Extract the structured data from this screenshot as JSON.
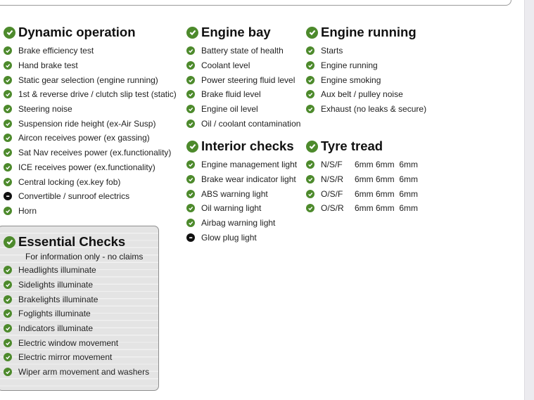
{
  "dynamic": {
    "title": "Dynamic operation",
    "items": [
      {
        "label": "Brake efficiency test",
        "status": "pass"
      },
      {
        "label": "Hand brake test",
        "status": "pass"
      },
      {
        "label": "Static gear selection (engine running)",
        "status": "pass"
      },
      {
        "label": "1st & reverse drive / clutch slip test (static)",
        "status": "pass"
      },
      {
        "label": "Steering noise",
        "status": "pass"
      },
      {
        "label": "Suspension ride height (ex-Air Susp)",
        "status": "pass"
      },
      {
        "label": "Aircon receives power (ex gassing)",
        "status": "pass"
      },
      {
        "label": "Sat Nav receives power (ex.functionality)",
        "status": "pass"
      },
      {
        "label": "ICE receives power (ex.functionality)",
        "status": "pass"
      },
      {
        "label": "Central locking (ex.key fob)",
        "status": "pass"
      },
      {
        "label": "Convertible / sunroof electrics",
        "status": "na"
      },
      {
        "label": "Horn",
        "status": "pass"
      }
    ]
  },
  "engine_bay": {
    "title": "Engine bay",
    "items": [
      {
        "label": "Battery state of health",
        "status": "pass"
      },
      {
        "label": "Coolant level",
        "status": "pass"
      },
      {
        "label": "Power steering fluid level",
        "status": "pass"
      },
      {
        "label": "Brake fluid level",
        "status": "pass"
      },
      {
        "label": "Engine oil level",
        "status": "pass"
      },
      {
        "label": "Oil / coolant contamination",
        "status": "pass"
      }
    ]
  },
  "engine_running": {
    "title": "Engine running",
    "items": [
      {
        "label": "Starts",
        "status": "pass"
      },
      {
        "label": "Engine running",
        "status": "pass"
      },
      {
        "label": "Engine smoking",
        "status": "pass"
      },
      {
        "label": "Aux belt / pulley noise",
        "status": "pass"
      },
      {
        "label": "Exhaust (no leaks & secure)",
        "status": "pass"
      }
    ]
  },
  "interior": {
    "title": "Interior checks",
    "items": [
      {
        "label": "Engine management light",
        "status": "pass"
      },
      {
        "label": "Brake wear indicator light",
        "status": "pass"
      },
      {
        "label": "ABS warning light",
        "status": "pass"
      },
      {
        "label": "Oil warning light",
        "status": "pass"
      },
      {
        "label": "Airbag warning light",
        "status": "pass"
      },
      {
        "label": "Glow plug light",
        "status": "na"
      }
    ]
  },
  "tyre": {
    "title": "Tyre tread",
    "items": [
      {
        "label": "N/S/F",
        "value": "6mm 6mm  6mm",
        "status": "pass"
      },
      {
        "label": "N/S/R",
        "value": "6mm 6mm  6mm",
        "status": "pass"
      },
      {
        "label": "O/S/F",
        "value": "6mm 6mm  6mm",
        "status": "pass"
      },
      {
        "label": "O/S/R",
        "value": "6mm 6mm  6mm",
        "status": "pass"
      }
    ]
  },
  "essential": {
    "title": "Essential Checks",
    "subtitle": "For information only - no claims",
    "items": [
      {
        "label": "Headlights illuminate",
        "status": "pass"
      },
      {
        "label": "Sidelights illuminate",
        "status": "pass"
      },
      {
        "label": "Brakelights illuminate",
        "status": "pass"
      },
      {
        "label": "Foglights illuminate",
        "status": "pass"
      },
      {
        "label": "Indicators illuminate",
        "status": "pass"
      },
      {
        "label": "Electric window movement",
        "status": "pass"
      },
      {
        "label": "Electric mirror movement",
        "status": "pass"
      },
      {
        "label": "Wiper arm movement and washers",
        "status": "pass"
      }
    ]
  },
  "colors": {
    "pass": "#4d8a2c",
    "na": "#111111"
  }
}
